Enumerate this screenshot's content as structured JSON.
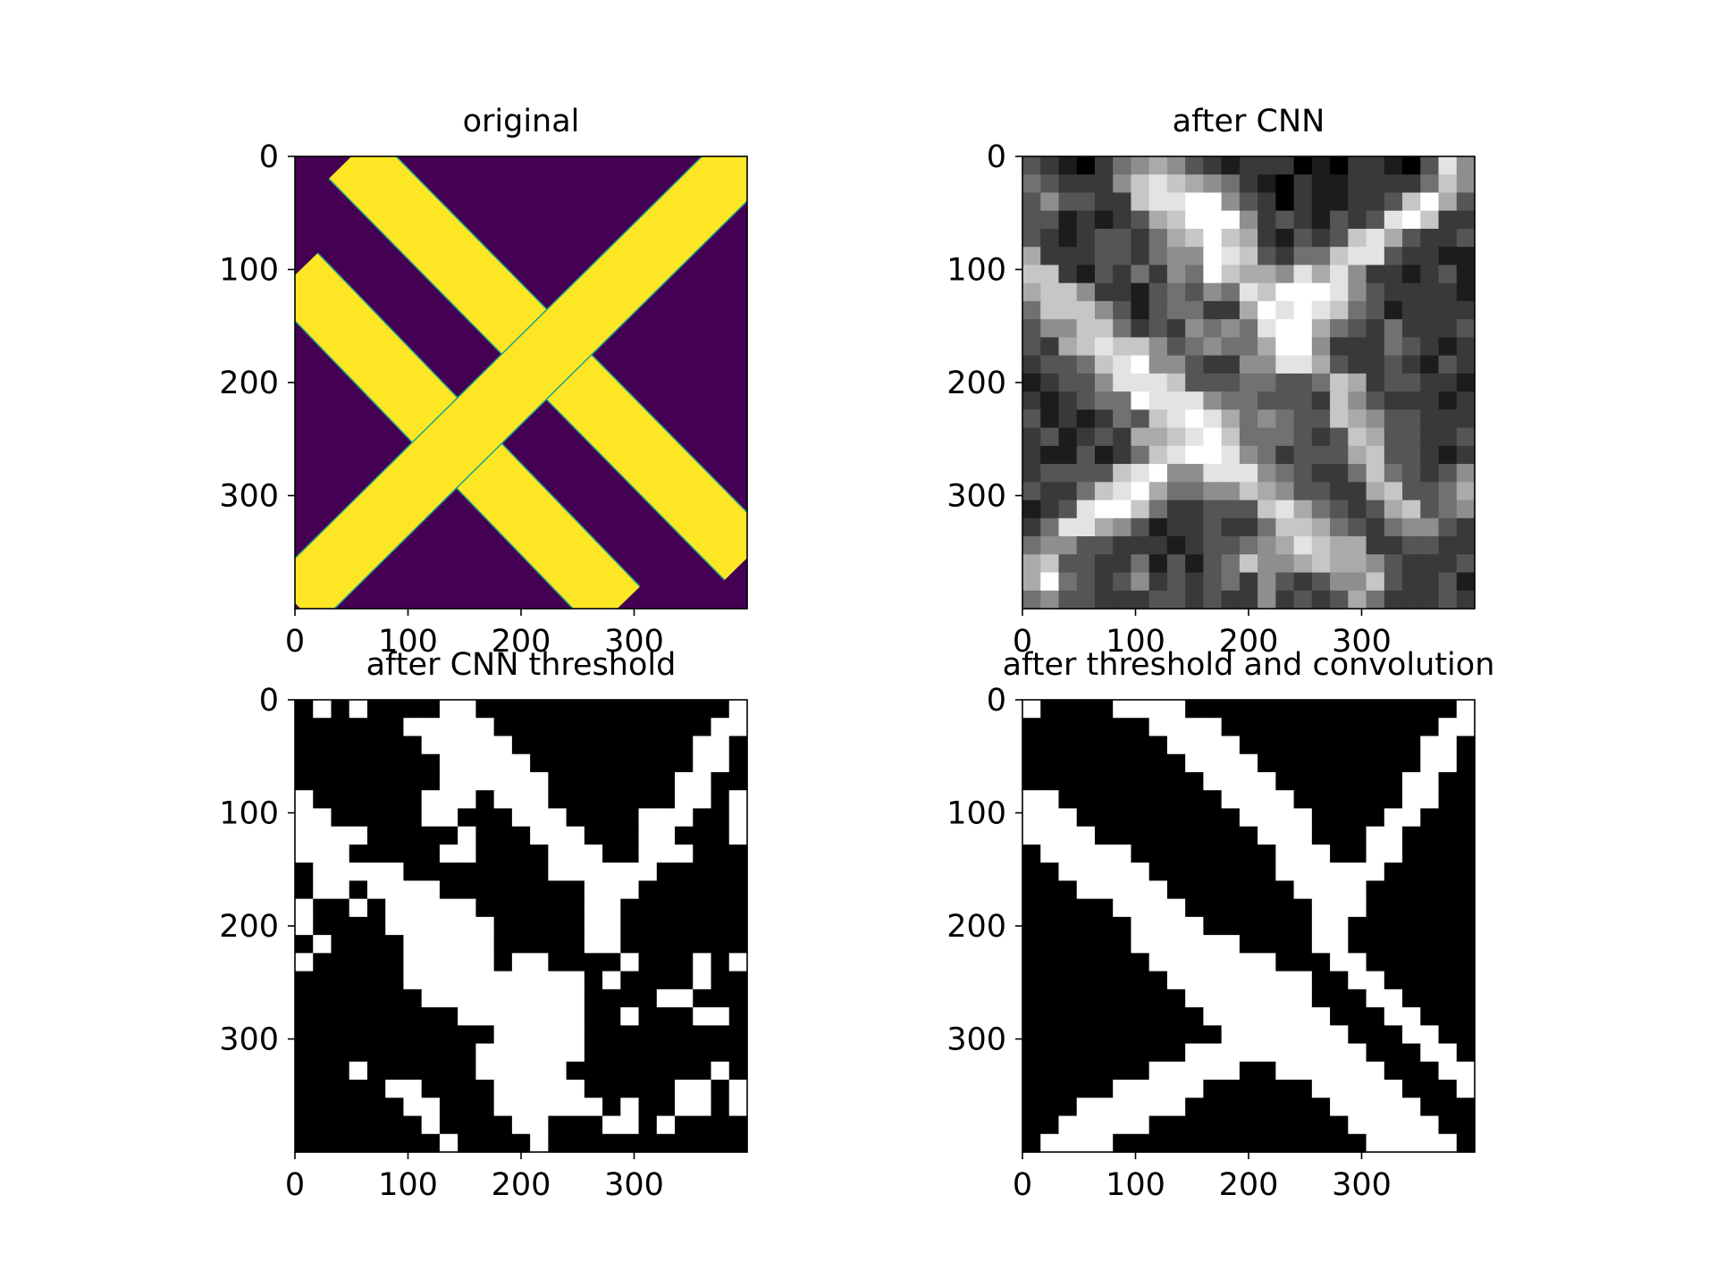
{
  "colors": {
    "viridis_low": "#440154",
    "viridis_high": "#fde725",
    "edge": "#20a386",
    "black": "#000000",
    "white": "#ffffff"
  },
  "chart_data": [
    {
      "type": "heatmap",
      "title": "original",
      "colormap": "viridis",
      "xlim": [
        0,
        400
      ],
      "ylim": [
        400,
        0
      ],
      "x_ticks": [
        0,
        100,
        200,
        300
      ],
      "y_ticks": [
        0,
        100,
        200,
        300
      ],
      "grid": false,
      "stripes": [
        {
          "direction": "down-right",
          "from": [
            50,
            0
          ],
          "to": [
            400,
            355
          ],
          "width": 55
        },
        {
          "direction": "down-right",
          "from": [
            0,
            105
          ],
          "to": [
            285,
            400
          ],
          "width": 55
        },
        {
          "direction": "up-right",
          "from": [
            0,
            395
          ],
          "to": [
            400,
            0
          ],
          "width": 55
        }
      ]
    },
    {
      "type": "heatmap",
      "title": "after CNN",
      "colormap": "gray",
      "resolution": [
        25,
        25
      ],
      "xlim": [
        0,
        400
      ],
      "ylim": [
        400,
        0
      ],
      "x_ticks": [
        0,
        100,
        200,
        300
      ],
      "y_ticks": [
        0,
        100,
        200,
        300
      ],
      "grid": false,
      "values": [
        "3210245653212220102210385",
        "4322257876542102112222475",
        "3533227889953202112237963",
        "3312123679995232132389722",
        "3212332467976213237863223",
        "6222332455987324478832211",
        "7721324254976658685221231",
        "6775221343548799985322221",
        "4777531344226989874312222",
        "3557742325454899643242223",
        "3267877534544699522243212",
        "2334789553225588632232132",
        "1233588873334433476233221",
        "2123449888544333275322212",
        "3121243789864543376533222",
        "2312326678974443237633223",
        "2113124789985423336733212",
        "2333378955888543224743235",
        "3224789644557653322673346",
        "1238997422333786432367345",
        "2488653122322477643245532",
        "4553322212334568766223322",
        "6733224131347556766532223",
        "6943235232342532355732231",
        "4533222332322523236422232"
      ]
    },
    {
      "type": "heatmap",
      "title": "after CNN threshold",
      "colormap": "binary",
      "resolution": [
        25,
        25
      ],
      "xlim": [
        0,
        400
      ],
      "ylim": [
        400,
        0
      ],
      "x_ticks": [
        0,
        100,
        200,
        300
      ],
      "y_ticks": [
        0,
        100,
        200,
        300
      ],
      "grid": false,
      "values": [
        "0101000011000000000000001",
        "0000001111100000000000011",
        "0000000111110000000000110",
        "0000000011111000000000110",
        "0000000011111100000001100",
        "1000000111011100000001101",
        "1100000110001110000111001",
        "1111000001000111000110001",
        "1110000011000011100111000",
        "0111110000000011111100000",
        "0110111100000000111000000",
        "1001011111000000110000000",
        "1000011111100000110000000",
        "0100001111100000110000000",
        "1000001111101100001000101",
        "0000001111111111010000100",
        "0000000111111111000011000",
        "0000000001111111001000110",
        "0000000000011111000000000",
        "0000000000111111000000000",
        "0001000000111110000000010",
        "0000011000011111000001101",
        "0000001100011111101001101",
        "0000000100001100011010000",
        "0000000010000100000000000"
      ]
    },
    {
      "type": "heatmap",
      "title": "after threshold and convolution",
      "colormap": "binary",
      "resolution": [
        25,
        25
      ],
      "xlim": [
        0,
        400
      ],
      "ylim": [
        400,
        0
      ],
      "x_ticks": [
        0,
        100,
        200,
        300
      ],
      "y_ticks": [
        0,
        100,
        200,
        300
      ],
      "grid": false,
      "values": [
        "1000011110000000000000001",
        "0000000111100000000000011",
        "0000000011110000000000110",
        "0000000001111000000000110",
        "0000000000111100000001100",
        "1100000000011110000001100",
        "1110000000001111000011000",
        "1111000000000111000110000",
        "0111110000000011100110000",
        "0011111000000011111100000",
        "0001111100000001111000000",
        "0000011110000000111000000",
        "0000001111000000110000000",
        "0000001111110000110000000",
        "0000000111111100011000000",
        "0000000011111111001100000",
        "0000000001111111000110000",
        "0000000000111111100011000",
        "0000000000011111110001100",
        "0000000001111111111000110",
        "0000000111110011111100011",
        "0000011111000000111110001",
        "0001111110000000011111000",
        "0011111000000000001111100",
        "0111100000000000000111110"
      ]
    }
  ]
}
